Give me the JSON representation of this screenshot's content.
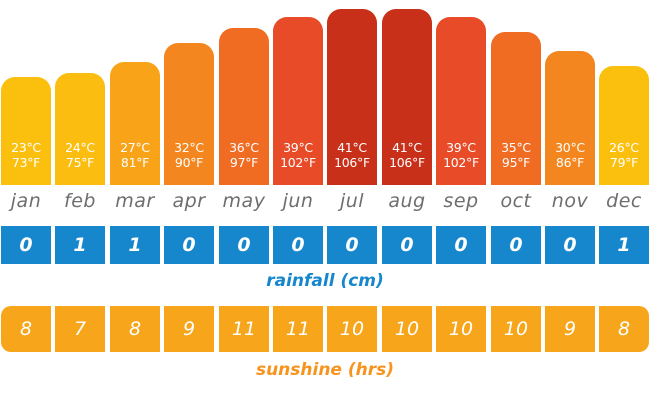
{
  "chart_data": {
    "type": "bar",
    "categories": [
      "jan",
      "feb",
      "mar",
      "apr",
      "may",
      "jun",
      "jul",
      "aug",
      "sep",
      "oct",
      "nov",
      "dec"
    ],
    "series": [
      {
        "name": "temperature_c",
        "values": [
          23,
          24,
          27,
          32,
          36,
          39,
          41,
          41,
          39,
          35,
          30,
          26
        ]
      },
      {
        "name": "temperature_f",
        "values": [
          73,
          75,
          81,
          90,
          97,
          102,
          106,
          106,
          102,
          95,
          86,
          79
        ]
      }
    ],
    "temp_labels_c": [
      "23°C",
      "24°C",
      "27°C",
      "32°C",
      "36°C",
      "39°C",
      "41°C",
      "41°C",
      "39°C",
      "35°C",
      "30°C",
      "26°C"
    ],
    "temp_labels_f": [
      "73°F",
      "75°F",
      "81°F",
      "90°F",
      "97°F",
      "102°F",
      "106°F",
      "106°F",
      "102°F",
      "95°F",
      "86°F",
      "79°F"
    ],
    "bar_colors": [
      "#fbc00e",
      "#fbbd0f",
      "#f8a318",
      "#f4861f",
      "#f06c23",
      "#e84b27",
      "#c9301a",
      "#c9301a",
      "#e84b27",
      "#f06c23",
      "#f4861f",
      "#fbc00e"
    ],
    "rainfall": {
      "caption": "rainfall (cm)",
      "values": [
        "0",
        "1",
        "1",
        "0",
        "0",
        "0",
        "0",
        "0",
        "0",
        "0",
        "0",
        "1"
      ],
      "color": "#1687cc"
    },
    "sunshine": {
      "caption": "sunshine (hrs)",
      "values": [
        "8",
        "7",
        "8",
        "9",
        "11",
        "11",
        "10",
        "10",
        "10",
        "10",
        "9",
        "8"
      ],
      "color": "#f7a51a"
    }
  }
}
